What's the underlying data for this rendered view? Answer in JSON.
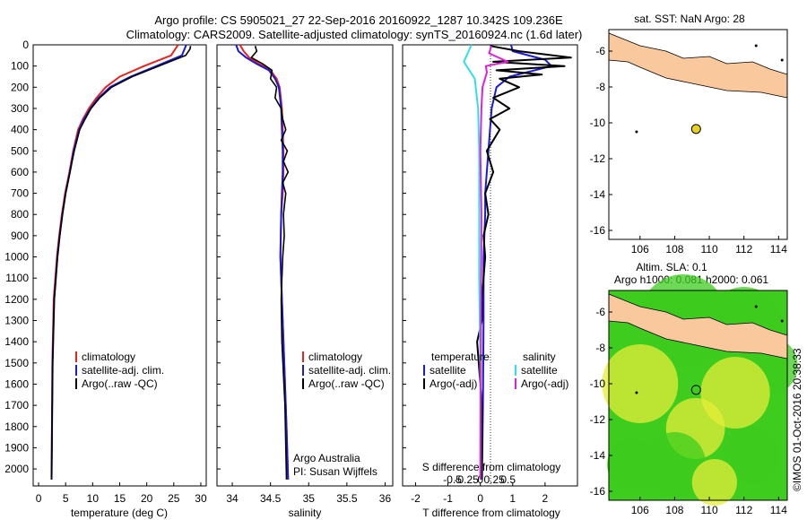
{
  "header": {
    "line1": "Argo profile: CS 5905021_27 22-Sep-2016 20160922_1287 10.342S 109.236E",
    "line2": "Climatology: CARS2009. Satellite-adjusted climatology: synTS_20160924.nc (1.6d later)"
  },
  "colors": {
    "climatology": "#e8221c",
    "satellite": "#1a1adc",
    "argo": "#000000",
    "satellite_s": "#30e0e8",
    "argo_s": "#e020d8",
    "land": "#f9c89c",
    "sst_bg": "#ffffff",
    "sla_green": "#3ecc1e",
    "sla_yellow": "#e6ee3a",
    "float_marker": "#e6d21e"
  },
  "chart_data": [
    {
      "type": "line",
      "id": "temperature",
      "xlabel": "temperature (deg C)",
      "ylabel": "",
      "xlim": [
        -1,
        31
      ],
      "ylim": [
        2080,
        0
      ],
      "xticks": [
        "0",
        "5",
        "10",
        "15",
        "20",
        "25",
        "30"
      ],
      "yticks": [
        "0",
        "100",
        "200",
        "300",
        "400",
        "500",
        "600",
        "700",
        "800",
        "900",
        "1000",
        "1100",
        "1200",
        "1300",
        "1400",
        "1500",
        "1600",
        "1700",
        "1800",
        "1900",
        "2000"
      ],
      "legend": {
        "position": "lower-left",
        "entries": [
          "climatology",
          "satellite-adj. clim.",
          "Argo(..raw -QC)"
        ]
      },
      "series": [
        {
          "name": "climatology",
          "x": [
            25.8,
            24.5,
            19.5,
            15,
            12.4,
            10.7,
            9.3,
            8.2,
            7.3,
            6.4,
            5.7,
            4.9,
            4.3,
            3.8,
            3.4,
            3.1,
            2.8,
            2.55,
            2.4
          ],
          "y": [
            0,
            50,
            100,
            150,
            200,
            250,
            300,
            350,
            400,
            500,
            600,
            700,
            800,
            900,
            1000,
            1100,
            1200,
            1500,
            2050
          ]
        },
        {
          "name": "satellite-adj. clim.",
          "x": [
            27.3,
            26.5,
            21.8,
            17,
            13.2,
            11.1,
            9.6,
            8.4,
            7.5,
            6.5,
            5.8,
            5,
            4.4,
            3.9,
            3.5,
            3.2,
            2.9,
            2.6,
            2.4
          ],
          "y": [
            0,
            50,
            100,
            150,
            200,
            250,
            300,
            350,
            400,
            500,
            600,
            700,
            800,
            900,
            1000,
            1100,
            1200,
            1500,
            2050
          ]
        },
        {
          "name": "Argo(..raw -QC)",
          "x": [
            28.1,
            28,
            27.2,
            22.2,
            17.3,
            13.5,
            11.3,
            9.7,
            8.6,
            7.6,
            6.6,
            5.8,
            5,
            4.4,
            3.9,
            3.5,
            3.2,
            2.9,
            2.6,
            2.4
          ],
          "y": [
            5,
            20,
            50,
            100,
            150,
            200,
            250,
            300,
            350,
            400,
            500,
            600,
            700,
            800,
            900,
            1000,
            1100,
            1200,
            1500,
            2050
          ]
        }
      ]
    },
    {
      "type": "line",
      "id": "salinity",
      "xlabel": "salinity",
      "xlim": [
        33.8,
        36.1
      ],
      "ylim": [
        2080,
        0
      ],
      "xticks": [
        "34",
        "34.5",
        "35",
        "35.5",
        "36"
      ],
      "legend": {
        "position": "lower-left",
        "entries": [
          "climatology",
          "satellite-adj. clim.",
          "Argo(..raw -QC)"
        ]
      },
      "annotation": [
        "Argo Australia",
        "PI: Susan Wijffels"
      ],
      "series": [
        {
          "name": "climatology",
          "x": [
            34.1,
            34.15,
            34.22,
            34.35,
            34.5,
            34.58,
            34.62,
            34.65,
            34.66,
            34.67,
            34.67,
            34.66,
            34.64,
            34.63,
            34.65,
            34.68,
            34.71,
            34.73
          ],
          "y": [
            0,
            30,
            60,
            90,
            120,
            160,
            200,
            300,
            400,
            500,
            600,
            700,
            800,
            1000,
            1200,
            1500,
            1800,
            2050
          ]
        },
        {
          "name": "satellite-adj. clim.",
          "x": [
            34.05,
            34.08,
            34.18,
            34.32,
            34.48,
            34.56,
            34.61,
            34.64,
            34.65,
            34.66,
            34.66,
            34.65,
            34.64,
            34.63,
            34.65,
            34.68,
            34.71,
            34.73
          ],
          "y": [
            0,
            30,
            60,
            90,
            120,
            160,
            200,
            300,
            400,
            500,
            600,
            700,
            800,
            1000,
            1200,
            1500,
            1800,
            2050
          ]
        },
        {
          "name": "Argo(..raw -QC)",
          "x": [
            34.3,
            34.32,
            34.25,
            34.4,
            34.52,
            34.5,
            34.58,
            34.56,
            34.64,
            34.66,
            34.7,
            34.64,
            34.72,
            34.67,
            34.73,
            34.66,
            34.7,
            34.67,
            34.68,
            34.66,
            34.65,
            34.64,
            34.65,
            34.69,
            34.71
          ],
          "y": [
            5,
            30,
            60,
            90,
            120,
            160,
            200,
            250,
            300,
            350,
            400,
            450,
            500,
            550,
            600,
            650,
            700,
            800,
            900,
            1000,
            1100,
            1200,
            1400,
            1700,
            2050
          ]
        }
      ]
    },
    {
      "type": "line",
      "id": "differences",
      "xlabel": "T difference from climatology",
      "xlabel_top": "S difference from climatology",
      "xlim": [
        -2.4,
        3.0
      ],
      "ylim": [
        2080,
        0
      ],
      "xticks": [
        "-2",
        "-1",
        "0",
        "1",
        "2"
      ],
      "xticks_s": [
        "-0.5",
        "-0.25",
        "0",
        "0.25",
        "0.5"
      ],
      "legend": {
        "position": "lower-center",
        "temperature_header": "temperature",
        "salinity_header": "salinity",
        "entries": [
          "satellite",
          "Argo(-adj)",
          "satellite",
          "Argo(-adj)"
        ]
      },
      "series": [
        {
          "name": "T satellite",
          "x": [
            0.95,
            1.0,
            2.0,
            2.2,
            0.9,
            0.5,
            0.35,
            0.3,
            0.25,
            0.2,
            0.15,
            0.15,
            0.1,
            0.1,
            0.08,
            0.05
          ],
          "y": [
            0,
            30,
            70,
            100,
            150,
            200,
            300,
            400,
            500,
            600,
            700,
            800,
            1000,
            1300,
            1700,
            2050
          ]
        },
        {
          "name": "T Argo(-adj)",
          "x": [
            0.3,
            1.2,
            2.8,
            0.4,
            2.6,
            0.5,
            1.9,
            0.6,
            1.2,
            0.4,
            0.9,
            0.3,
            0.6,
            0.2,
            0.4,
            0.15,
            0.25,
            0.1,
            0.15,
            0.05,
            0.05,
            -0.1,
            0.05,
            0.05
          ],
          "y": [
            5,
            30,
            60,
            80,
            100,
            120,
            140,
            160,
            200,
            250,
            300,
            350,
            400,
            500,
            600,
            700,
            800,
            900,
            1000,
            1200,
            1300,
            1400,
            1700,
            2050
          ]
        },
        {
          "name": "S satellite",
          "x": [
            -0.08,
            -0.15,
            -0.05,
            -0.02,
            -0.01,
            -0.01,
            -0.01,
            0,
            0
          ],
          "y": [
            0,
            80,
            160,
            300,
            500,
            800,
            1100,
            1500,
            2050
          ]
        },
        {
          "name": "S Argo(-adj)",
          "x": [
            0.1,
            0.08,
            0.25,
            0.05,
            0.06,
            0.02,
            0.01,
            0,
            0.01,
            0
          ],
          "y": [
            5,
            40,
            80,
            100,
            130,
            200,
            300,
            500,
            800,
            2050
          ]
        }
      ]
    }
  ],
  "sst_map": {
    "title": "sat. SST: NaN Argo: 28",
    "xticks": [
      "106",
      "108",
      "110",
      "112",
      "114"
    ],
    "yticks": [
      "-6",
      "-8",
      "-10",
      "-12",
      "-14",
      "-16"
    ],
    "lon_range": [
      104.2,
      114.5
    ],
    "lat_range": [
      -16.5,
      -4.8
    ],
    "float_lon": 109.236,
    "float_lat": -10.342
  },
  "sla_map": {
    "title_line1": "Altim. SLA: 0.1",
    "title_line2": "Argo h1000: 0.081 h2000: 0.061",
    "xticks": [
      "106",
      "108",
      "110",
      "112",
      "114"
    ],
    "yticks": [
      "-6",
      "-8",
      "-10",
      "-12",
      "-14",
      "-16"
    ],
    "float_lon": 109.236,
    "float_lat": -10.342
  },
  "credit": "©IMOS 01-Oct-2016 20:38:33"
}
